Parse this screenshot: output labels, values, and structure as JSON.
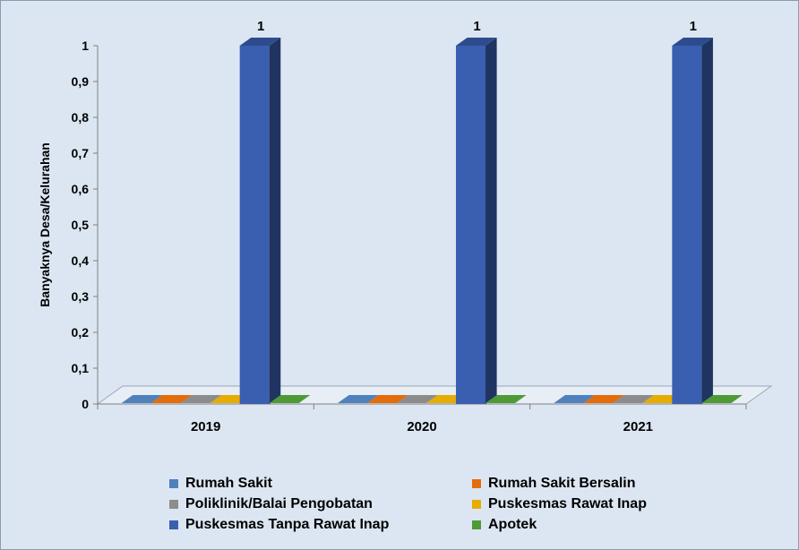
{
  "chart_data": {
    "type": "bar",
    "title": "",
    "xlabel": "",
    "ylabel": "Banyaknya Desa/Kelurahan",
    "ylim": [
      0,
      1
    ],
    "yticks": [
      "0",
      "0,1",
      "0,2",
      "0,3",
      "0,4",
      "0,5",
      "0,6",
      "0,7",
      "0,8",
      "0,9",
      "1"
    ],
    "categories": [
      "2019",
      "2020",
      "2021"
    ],
    "series": [
      {
        "name": "Rumah Sakit",
        "color": "#4f81bd",
        "values": [
          0,
          0,
          0
        ]
      },
      {
        "name": "Rumah Sakit Bersalin",
        "color": "#e46c0a",
        "values": [
          0,
          0,
          0
        ]
      },
      {
        "name": "Poliklinik/Balai Pengobatan",
        "color": "#8c8c8c",
        "values": [
          0,
          0,
          0
        ]
      },
      {
        "name": "Puskesmas Rawat Inap",
        "color": "#e6ac00",
        "values": [
          0,
          0,
          0
        ]
      },
      {
        "name": "Puskesmas Tanpa Rawat Inap",
        "color": "#3a5fb0",
        "values": [
          1,
          1,
          1
        ]
      },
      {
        "name": "Apotek",
        "color": "#4e9a36",
        "values": [
          0,
          0,
          0
        ]
      }
    ],
    "data_labels": [
      "1",
      "1",
      "1"
    ],
    "legend_position": "bottom",
    "grid": false,
    "style": "3d-clustered-column"
  }
}
